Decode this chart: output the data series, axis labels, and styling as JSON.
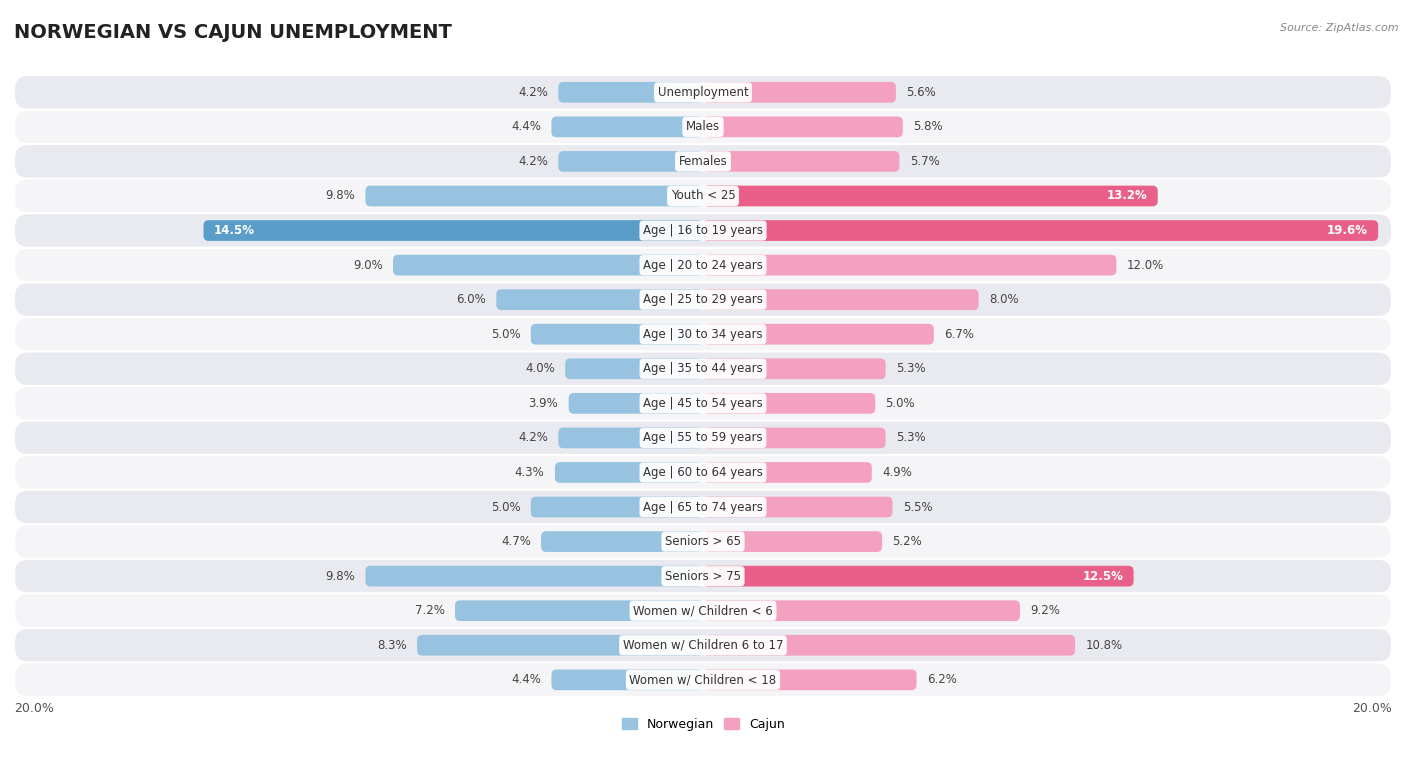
{
  "title": "NORWEGIAN VS CAJUN UNEMPLOYMENT",
  "source": "Source: ZipAtlas.com",
  "categories": [
    "Unemployment",
    "Males",
    "Females",
    "Youth < 25",
    "Age | 16 to 19 years",
    "Age | 20 to 24 years",
    "Age | 25 to 29 years",
    "Age | 30 to 34 years",
    "Age | 35 to 44 years",
    "Age | 45 to 54 years",
    "Age | 55 to 59 years",
    "Age | 60 to 64 years",
    "Age | 65 to 74 years",
    "Seniors > 65",
    "Seniors > 75",
    "Women w/ Children < 6",
    "Women w/ Children 6 to 17",
    "Women w/ Children < 18"
  ],
  "norwegian": [
    4.2,
    4.4,
    4.2,
    9.8,
    14.5,
    9.0,
    6.0,
    5.0,
    4.0,
    3.9,
    4.2,
    4.3,
    5.0,
    4.7,
    9.8,
    7.2,
    8.3,
    4.4
  ],
  "cajun": [
    5.6,
    5.8,
    5.7,
    13.2,
    19.6,
    12.0,
    8.0,
    6.7,
    5.3,
    5.0,
    5.3,
    4.9,
    5.5,
    5.2,
    12.5,
    9.2,
    10.8,
    6.2
  ],
  "highlight_norwegian": [
    false,
    false,
    false,
    false,
    true,
    false,
    false,
    false,
    false,
    false,
    false,
    false,
    false,
    false,
    false,
    false,
    false,
    false
  ],
  "highlight_cajun": [
    false,
    false,
    false,
    true,
    true,
    false,
    false,
    false,
    false,
    false,
    false,
    false,
    false,
    false,
    true,
    false,
    false,
    false
  ],
  "norwegian_color": "#97c3e0",
  "cajun_color": "#f4a0c0",
  "norwegian_highlight_color": "#5b9dc9",
  "cajun_highlight_color": "#e8608a",
  "row_bg_dark": "#e8eaf0",
  "row_bg_light": "#f5f5f8",
  "max_val": 20.0,
  "bar_height": 0.6,
  "title_fontsize": 14,
  "cat_fontsize": 8.5,
  "value_fontsize": 8.5,
  "legend_fontsize": 9
}
